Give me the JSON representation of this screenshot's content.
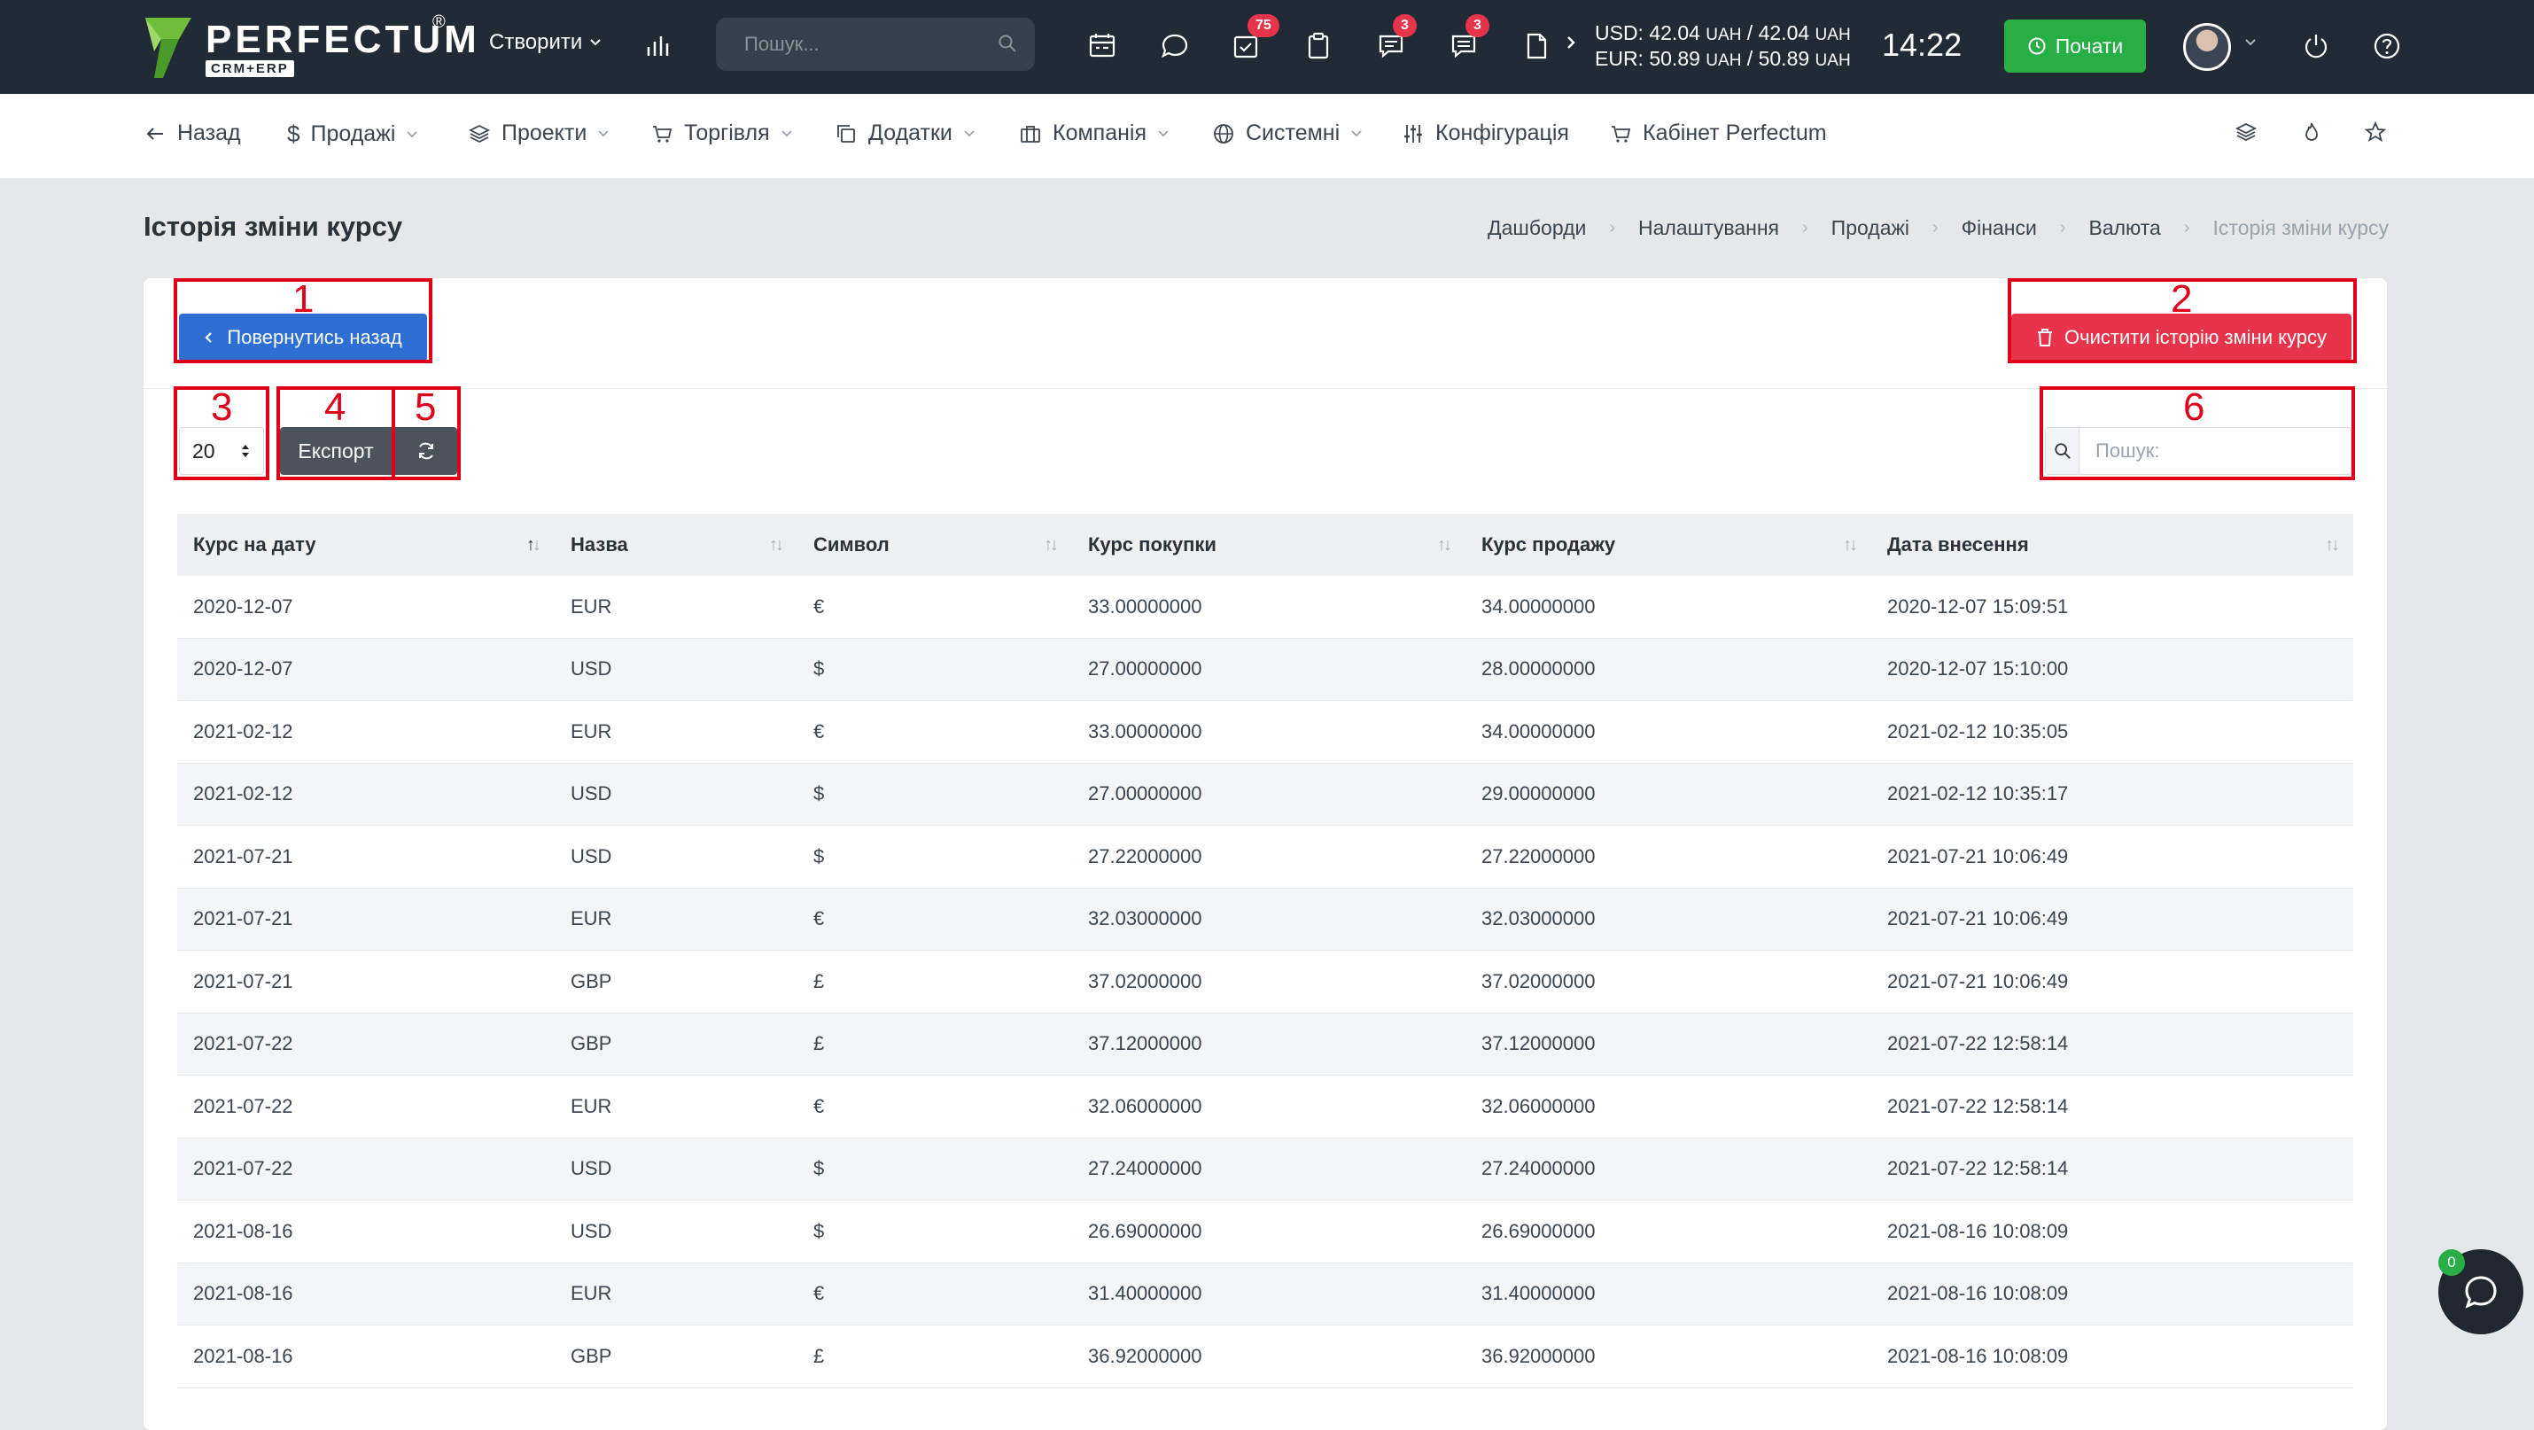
{
  "brand": {
    "name": "PERFECTUM",
    "registered": "®",
    "sub": "CRM+ERP"
  },
  "topbar": {
    "create_label": "Створити",
    "search_placeholder": "Пошук...",
    "badges": {
      "tasks": "75",
      "chat": "3",
      "messages": "3"
    },
    "rates": {
      "usd_label": "USD: 42.04",
      "usd_unit1": "UAH",
      "usd_sep": " / 42.04",
      "usd_unit2": "UAH",
      "eur_label": "EUR: 50.89",
      "eur_unit1": "UAH",
      "eur_sep": " / 50.89",
      "eur_unit2": "UAH"
    },
    "time": "14:22",
    "start_label": "Почати"
  },
  "nav": {
    "back": "Назад",
    "sales": "Продажі",
    "projects": "Проекти",
    "trade": "Торгівля",
    "addons": "Додатки",
    "company": "Компанія",
    "system": "Системні",
    "config": "Конфігурація",
    "cabinet": "Кабінет Perfectum"
  },
  "page": {
    "title": "Історія зміни курсу",
    "breadcrumb": [
      "Дашборди",
      "Налаштування",
      "Продажі",
      "Фінанси",
      "Валюта",
      "Історія зміни курсу"
    ]
  },
  "toolbar": {
    "back_label": "Повернутись назад",
    "clear_label": "Очистити історію зміни курсу",
    "page_size": "20",
    "export_label": "Експорт",
    "search_placeholder": "Пошук:"
  },
  "annotations": [
    "1",
    "2",
    "3",
    "4",
    "5",
    "6"
  ],
  "table": {
    "columns": [
      "Курс на дату",
      "Назва",
      "Символ",
      "Курс покупки",
      "Курс продажу",
      "Дата внесення"
    ],
    "rows": [
      [
        "2020-12-07",
        "EUR",
        "€",
        "33.00000000",
        "34.00000000",
        "2020-12-07 15:09:51"
      ],
      [
        "2020-12-07",
        "USD",
        "$",
        "27.00000000",
        "28.00000000",
        "2020-12-07 15:10:00"
      ],
      [
        "2021-02-12",
        "EUR",
        "€",
        "33.00000000",
        "34.00000000",
        "2021-02-12 10:35:05"
      ],
      [
        "2021-02-12",
        "USD",
        "$",
        "27.00000000",
        "29.00000000",
        "2021-02-12 10:35:17"
      ],
      [
        "2021-07-21",
        "USD",
        "$",
        "27.22000000",
        "27.22000000",
        "2021-07-21 10:06:49"
      ],
      [
        "2021-07-21",
        "EUR",
        "€",
        "32.03000000",
        "32.03000000",
        "2021-07-21 10:06:49"
      ],
      [
        "2021-07-21",
        "GBP",
        "£",
        "37.02000000",
        "37.02000000",
        "2021-07-21 10:06:49"
      ],
      [
        "2021-07-22",
        "GBP",
        "£",
        "37.12000000",
        "37.12000000",
        "2021-07-22 12:58:14"
      ],
      [
        "2021-07-22",
        "EUR",
        "€",
        "32.06000000",
        "32.06000000",
        "2021-07-22 12:58:14"
      ],
      [
        "2021-07-22",
        "USD",
        "$",
        "27.24000000",
        "27.24000000",
        "2021-07-22 12:58:14"
      ],
      [
        "2021-08-16",
        "USD",
        "$",
        "26.69000000",
        "26.69000000",
        "2021-08-16 10:08:09"
      ],
      [
        "2021-08-16",
        "EUR",
        "€",
        "31.40000000",
        "31.40000000",
        "2021-08-16 10:08:09"
      ],
      [
        "2021-08-16",
        "GBP",
        "£",
        "36.92000000",
        "36.92000000",
        "2021-08-16 10:08:09"
      ]
    ]
  },
  "chat": {
    "badge": "0"
  },
  "colors": {
    "topbar": "#212b36",
    "primary": "#2e6fd3",
    "danger": "#e8344a",
    "success": "#27ae45",
    "annotation": "#e0001a"
  }
}
